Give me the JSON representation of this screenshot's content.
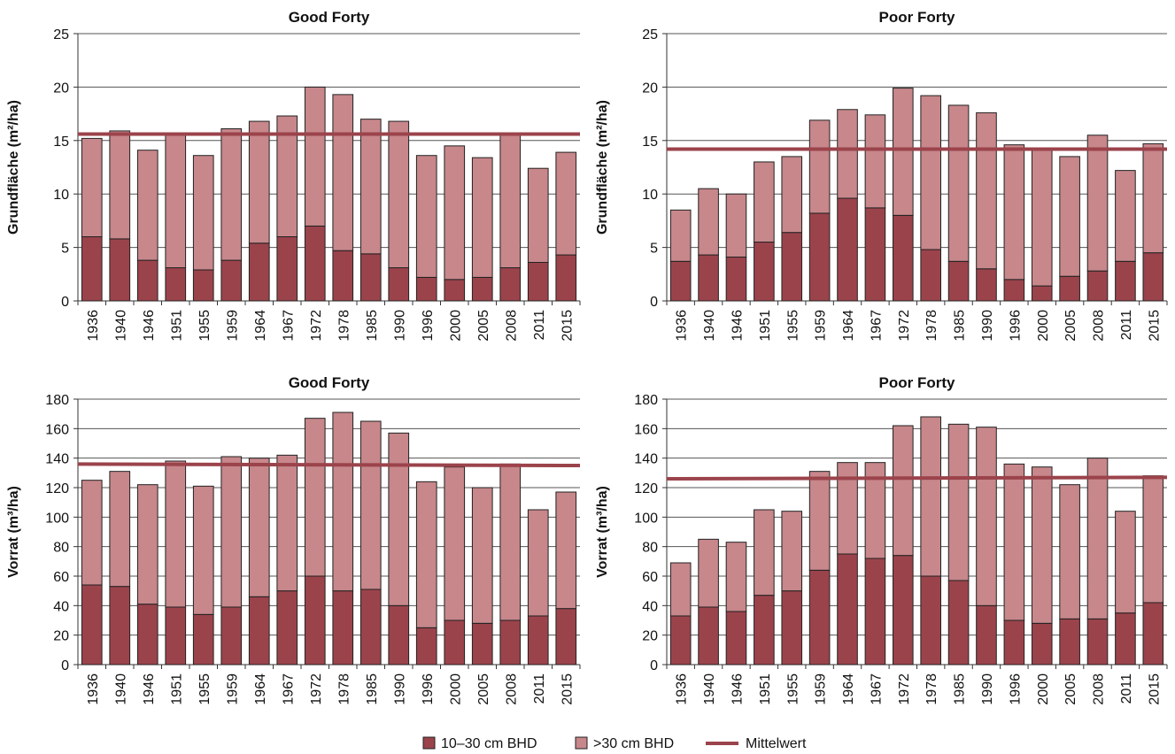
{
  "colors": {
    "small": "#9b434b",
    "large": "#c7878b",
    "mean": "#9b434b",
    "grid": "#555555",
    "axis": "#333333",
    "bar_stroke": "#222222"
  },
  "legend": {
    "small": "10–30 cm BHD",
    "large": ">30 cm BHD",
    "mean": "Mittelwert"
  },
  "chart_data": [
    {
      "type": "bar",
      "title": "Good Forty",
      "ylabel": "Grundfläche (m²/ha)",
      "ylim": [
        0,
        25
      ],
      "yticks": [
        "0",
        "5",
        "10",
        "15",
        "20",
        "25"
      ],
      "stacked": true,
      "categories": [
        "1936",
        "1940",
        "1946",
        "1951",
        "1955",
        "1959",
        "1964",
        "1967",
        "1972",
        "1978",
        "1985",
        "1990",
        "1996",
        "2000",
        "2005",
        "2008",
        "2011",
        "2015"
      ],
      "series": [
        {
          "name": "10–30 cm BHD",
          "values": [
            6.0,
            5.8,
            3.8,
            3.1,
            2.9,
            3.8,
            5.4,
            6.0,
            7.0,
            4.7,
            4.4,
            3.1,
            2.2,
            2.0,
            2.2,
            3.1,
            3.6,
            4.3
          ]
        },
        {
          "name": ">30 cm BHD",
          "values": [
            9.2,
            10.1,
            10.3,
            12.4,
            10.7,
            12.3,
            11.4,
            11.3,
            13.0,
            14.6,
            12.6,
            13.7,
            11.4,
            12.5,
            11.2,
            12.4,
            8.8,
            9.6
          ]
        }
      ],
      "mean": {
        "name": "Mittelwert",
        "values": [
          15.6,
          15.6
        ]
      }
    },
    {
      "type": "bar",
      "title": "Poor Forty",
      "ylabel": "Grundfläche (m²/ha)",
      "ylim": [
        0,
        25
      ],
      "yticks": [
        "0",
        "5",
        "10",
        "15",
        "20",
        "25"
      ],
      "stacked": true,
      "categories": [
        "1936",
        "1940",
        "1946",
        "1951",
        "1955",
        "1959",
        "1964",
        "1967",
        "1972",
        "1978",
        "1985",
        "1990",
        "1996",
        "2000",
        "2005",
        "2008",
        "2011",
        "2015"
      ],
      "series": [
        {
          "name": "10–30 cm BHD",
          "values": [
            3.7,
            4.3,
            4.1,
            5.5,
            6.4,
            8.2,
            9.6,
            8.7,
            8.0,
            4.8,
            3.7,
            3.0,
            2.0,
            1.4,
            2.3,
            2.8,
            3.7,
            4.5
          ]
        },
        {
          "name": ">30 cm BHD",
          "values": [
            4.8,
            6.2,
            5.9,
            7.5,
            7.1,
            8.7,
            8.3,
            8.7,
            11.9,
            14.4,
            14.6,
            14.6,
            12.6,
            12.9,
            11.2,
            12.7,
            8.5,
            10.2
          ]
        }
      ],
      "mean": {
        "name": "Mittelwert",
        "values": [
          14.2,
          14.2
        ]
      }
    },
    {
      "type": "bar",
      "title": "Good Forty",
      "ylabel": "Vorrat (m³/ha)",
      "ylim": [
        0,
        180
      ],
      "yticks": [
        "0",
        "20",
        "40",
        "60",
        "80",
        "100",
        "120",
        "140",
        "160",
        "180"
      ],
      "stacked": true,
      "categories": [
        "1936",
        "1940",
        "1946",
        "1951",
        "1955",
        "1959",
        "1964",
        "1967",
        "1972",
        "1978",
        "1985",
        "1990",
        "1996",
        "2000",
        "2005",
        "2008",
        "2011",
        "2015"
      ],
      "series": [
        {
          "name": "10–30 cm BHD",
          "values": [
            54,
            53,
            41,
            39,
            34,
            39,
            46,
            50,
            60,
            50,
            51,
            40,
            25,
            30,
            28,
            30,
            33,
            38
          ]
        },
        {
          "name": ">30 cm BHD",
          "values": [
            71,
            78,
            81,
            99,
            87,
            102,
            94,
            92,
            107,
            121,
            114,
            117,
            99,
            104,
            92,
            106,
            72,
            79
          ]
        }
      ],
      "mean": {
        "name": "Mittelwert",
        "values": [
          136,
          135
        ]
      }
    },
    {
      "type": "bar",
      "title": "Poor Forty",
      "ylabel": "Vorrat (m³/ha)",
      "ylim": [
        0,
        180
      ],
      "yticks": [
        "0",
        "20",
        "40",
        "60",
        "80",
        "100",
        "120",
        "140",
        "160",
        "180"
      ],
      "stacked": true,
      "categories": [
        "1936",
        "1940",
        "1946",
        "1951",
        "1955",
        "1959",
        "1964",
        "1967",
        "1972",
        "1978",
        "1985",
        "1990",
        "1996",
        "2000",
        "2005",
        "2008",
        "2011",
        "2015"
      ],
      "series": [
        {
          "name": "10–30 cm BHD",
          "values": [
            33,
            39,
            36,
            47,
            50,
            64,
            75,
            72,
            74,
            60,
            57,
            40,
            30,
            28,
            31,
            31,
            35,
            42
          ]
        },
        {
          "name": ">30 cm BHD",
          "values": [
            36,
            46,
            47,
            58,
            54,
            67,
            62,
            65,
            88,
            108,
            106,
            121,
            106,
            106,
            91,
            109,
            69,
            86
          ]
        }
      ],
      "mean": {
        "name": "Mittelwert",
        "values": [
          126,
          127
        ]
      }
    }
  ]
}
